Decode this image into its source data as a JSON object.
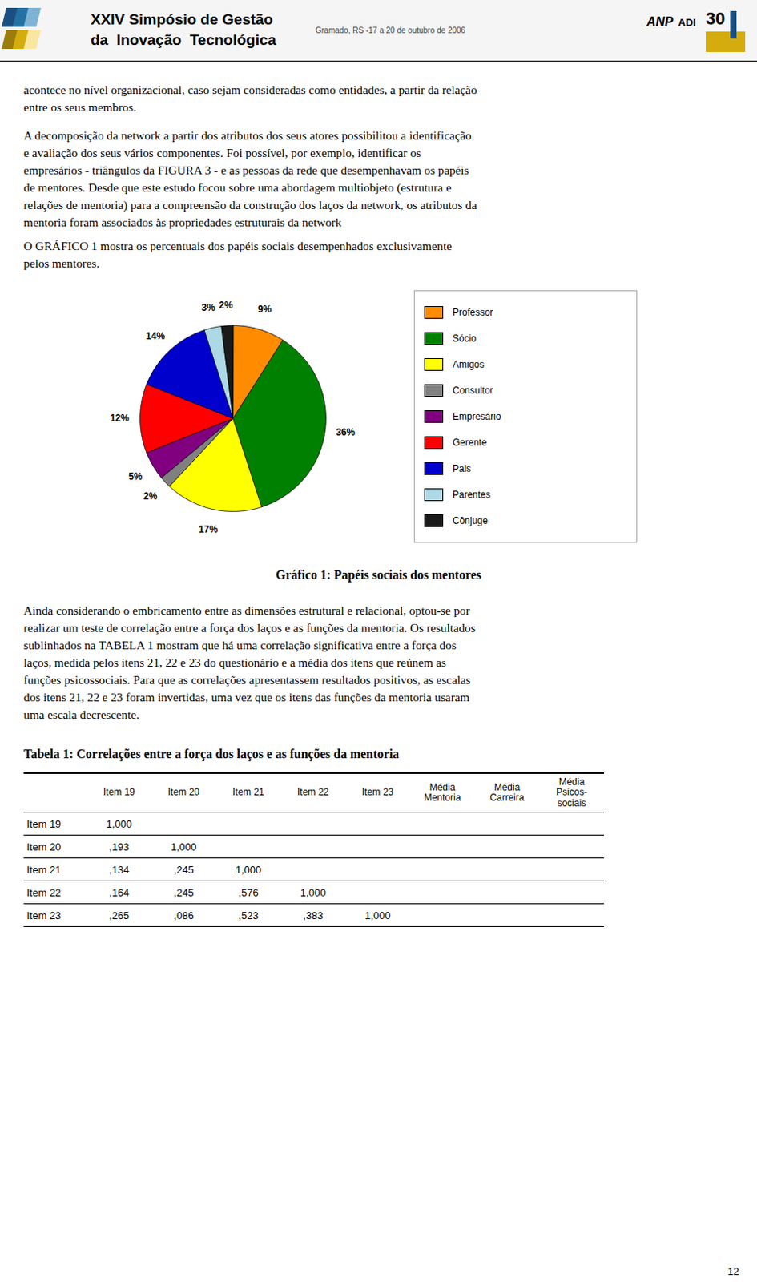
{
  "chart_data": {
    "type": "pie",
    "title": "Gráfico 1: Papéis sociais dos mentores",
    "categories": [
      "Professor",
      "Sócio",
      "Amigos",
      "Consultor",
      "Empresário",
      "Gerente",
      "Pais",
      "Parentes",
      "Cônjuge"
    ],
    "values": [
      9,
      36,
      17,
      2,
      5,
      12,
      14,
      3,
      2
    ],
    "value_labels": [
      "9%",
      "36%",
      "17%",
      "2%",
      "5%",
      "12%",
      "14%",
      "3%",
      "2%"
    ],
    "colors": [
      "#FF8C00",
      "#008000",
      "#FFFF00",
      "#808080",
      "#800080",
      "#FF0000",
      "#0000CD",
      "#ADD8E6",
      "#1A1A1A"
    ],
    "data_labels": true,
    "legend": "right"
  },
  "page": {
    "header": {
      "title_lines": [
        "XXIV Simpósio de Gestão",
        "da  Inovação  Tecnológica"
      ],
      "location": "Gramado, RS -17 a 20 de outubro de 2006",
      "logo_texts": [
        "ANP",
        "ADI",
        "30"
      ]
    },
    "paragraphs_before": [
      [
        "acontece no nível organizacional, caso sejam consideradas como entidades, a partir da relação",
        "entre os seus membros."
      ],
      [
        "A decomposição da network a partir dos atributos dos seus atores possibilitou a identificação",
        "e avaliação dos seus vários componentes. Foi possível, por exemplo, identificar os",
        "empresários - triângulos da FIGURA 3 - e as pessoas da rede que desempenhavam os papéis",
        "de mentores. Desde que este estudo focou sobre uma abordagem multiobjeto (estrutura e",
        "relações de mentoria) para a compreensão da construção dos laços da network, os atributos da",
        "mentoria foram associados às propriedades estruturais da network"
      ],
      [
        "O GRÁFICO 1 mostra os percentuais dos papéis sociais desempenhados exclusivamente",
        "pelos mentores."
      ]
    ],
    "paragraphs_after": [
      [
        "Ainda considerando o embricamento entre as dimensões estrutural e relacional, optou-se por",
        "realizar um teste de correlação entre a força dos laços e as funções da mentoria. Os resultados",
        "sublinhados na TABELA 1 mostram que há uma correlação significativa entre a força dos",
        "laços, medida pelos itens 21, 22 e 23 do questionário e a média dos itens que reúnem as",
        "funções psicossociais. Para que as correlações apresentassem resultados positivos, as escalas",
        "dos itens 21, 22 e 23 foram invertidas, uma vez que os itens das funções da mentoria usaram",
        "uma escala decrescente."
      ]
    ],
    "table": {
      "title": "Tabela 1: Correlações entre a força dos laços e as funções da mentoria",
      "columns": [
        null,
        "Item 19",
        "Item 20",
        "Item 21",
        "Item 22",
        "Item 23",
        "Média\nMentoria",
        "Média\nCarreira",
        "Média\nPsicos-\nsociais"
      ],
      "rows": [
        [
          "Item 19",
          "1,000",
          null,
          null,
          null,
          null,
          null,
          null,
          null
        ],
        [
          "Item 20",
          ",193",
          "1,000",
          null,
          null,
          null,
          null,
          null,
          null
        ],
        [
          "Item 21",
          ",134",
          ",245",
          "1,000",
          null,
          null,
          null,
          null,
          null
        ],
        [
          "Item 22",
          ",164",
          ",245",
          ",576",
          "1,000",
          null,
          null,
          null,
          null
        ],
        [
          "Item 23",
          ",265",
          ",086",
          ",523",
          ",383",
          "1,000",
          null,
          null,
          null
        ]
      ]
    },
    "page_number": "12"
  }
}
